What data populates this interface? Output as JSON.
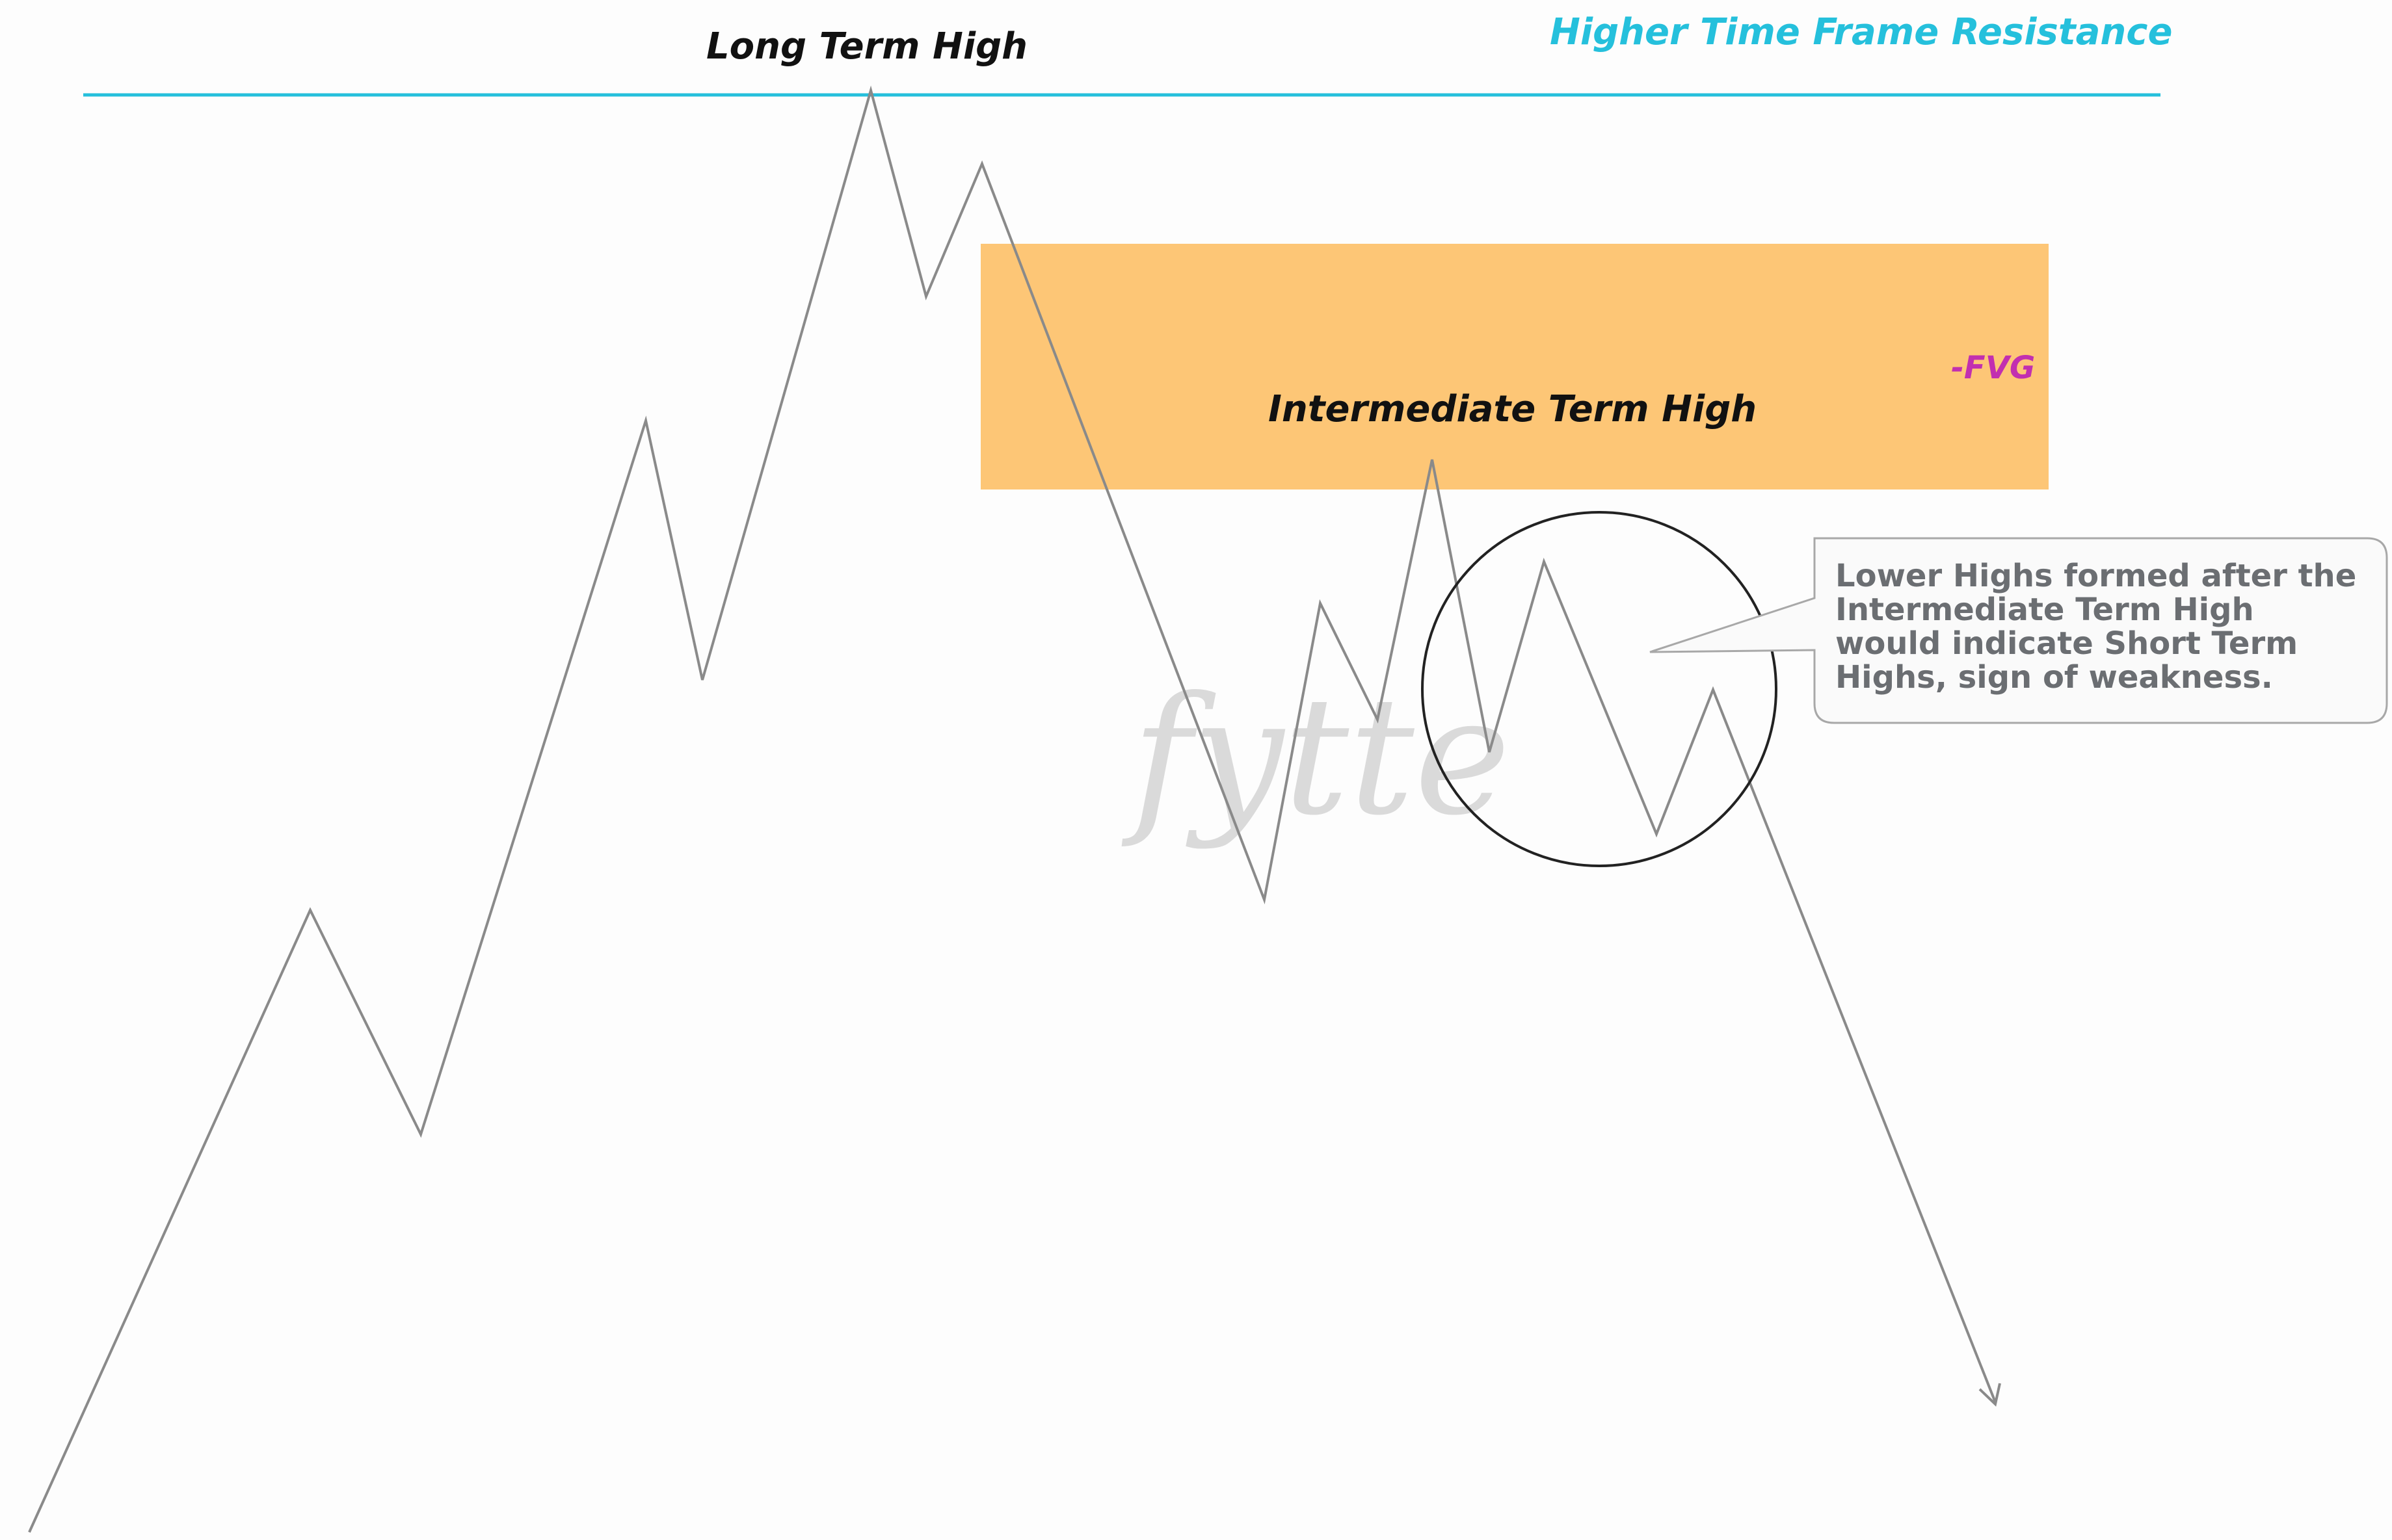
{
  "diagram": {
    "title_left": "Long Term High",
    "title_right": "Higher Time Frame Resistance",
    "intermediate_label": "Intermediate Term High",
    "fvg_label": "-FVG",
    "callout": "Lower Highs formed after the Intermediate Term High would indicate Short Term Highs, sign of weakness.",
    "watermark": "fytte",
    "colors": {
      "resistance": "#25c0dc",
      "fvg_zone": "#fdc676",
      "fvg_label": "#c22fb0",
      "price_line": "#8a8a8a",
      "text_dark": "#111111",
      "callout_text": "#6b6e72",
      "callout_border": "#a8a8a8",
      "circle": "#222222",
      "watermark": "#cfcfcf"
    }
  }
}
